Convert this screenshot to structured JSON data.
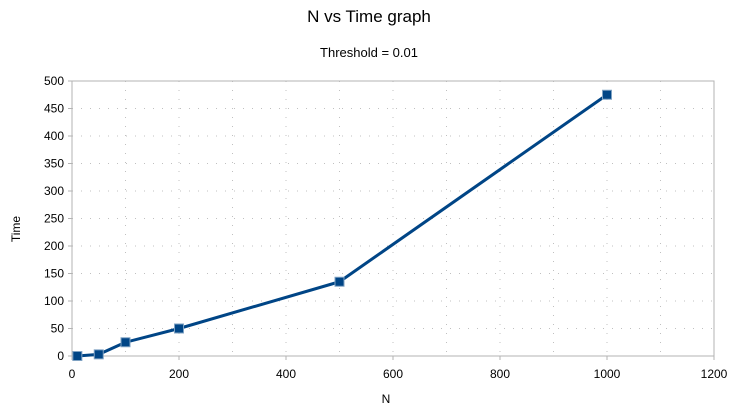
{
  "chart_data": {
    "type": "line",
    "title": "N vs Time graph",
    "subtitle": "Threshold = 0.01",
    "xlabel": "N",
    "ylabel": "Time",
    "xlim": [
      0,
      1200
    ],
    "ylim": [
      0,
      500
    ],
    "x_ticks": [
      "0",
      "200",
      "400",
      "600",
      "800",
      "1000",
      "1200"
    ],
    "y_ticks": [
      "0",
      "50",
      "100",
      "150",
      "200",
      "250",
      "300",
      "350",
      "400",
      "450",
      "500"
    ],
    "grid": "dotted",
    "series": [
      {
        "color": "#004586",
        "marker": "square",
        "x": [
          10,
          50,
          100,
          200,
          500,
          1000
        ],
        "y": [
          0,
          3,
          25,
          50,
          135,
          475
        ]
      }
    ]
  }
}
